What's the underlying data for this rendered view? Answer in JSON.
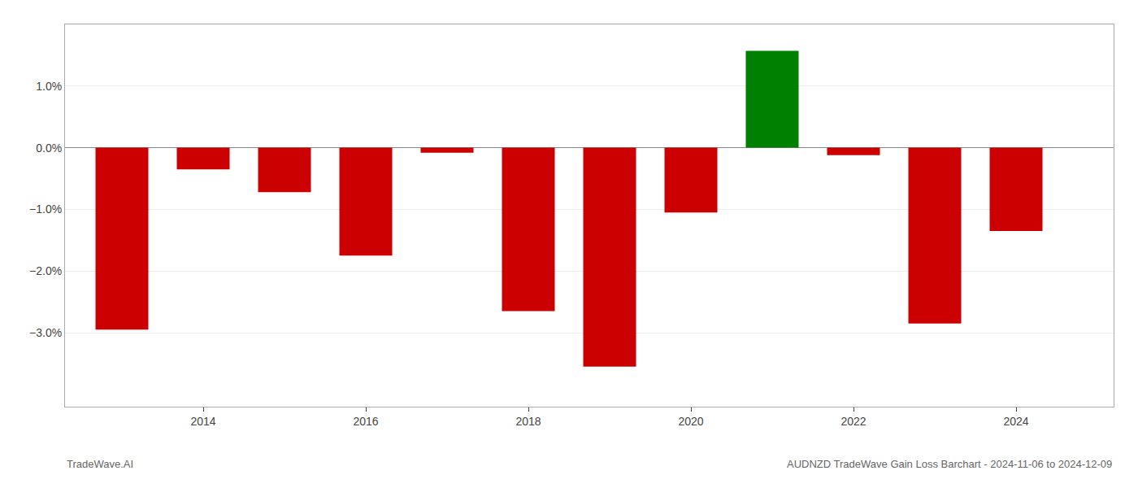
{
  "chart_data": {
    "type": "bar",
    "x": [
      2013,
      2014,
      2015,
      2016,
      2017,
      2018,
      2019,
      2020,
      2021,
      2022,
      2023,
      2024
    ],
    "values": [
      -2.95,
      -0.35,
      -0.72,
      -1.75,
      -0.08,
      -2.65,
      -3.55,
      -1.05,
      1.57,
      -0.12,
      -2.85,
      -1.35
    ],
    "colors": [
      "#cc0000",
      "#cc0000",
      "#cc0000",
      "#cc0000",
      "#cc0000",
      "#cc0000",
      "#cc0000",
      "#cc0000",
      "#008000",
      "#cc0000",
      "#cc0000",
      "#cc0000"
    ],
    "xlim": [
      2012.3,
      2025.2
    ],
    "xticks": [
      2014,
      2016,
      2018,
      2020,
      2022,
      2024
    ],
    "ylim": [
      -4.2,
      2.0
    ],
    "yticks": [
      {
        "value": -3.0,
        "label": "−3.0%"
      },
      {
        "value": -2.0,
        "label": "−2.0%"
      },
      {
        "value": -1.0,
        "label": "−1.0%"
      },
      {
        "value": 0.0,
        "label": "0.0%"
      },
      {
        "value": 1.0,
        "label": "1.0%"
      }
    ],
    "grid": true,
    "annotations": [
      "TradeWave.AI",
      "AUDNZD TradeWave Gain Loss Barchart - 2024-11-06 to 2024-12-09"
    ]
  }
}
